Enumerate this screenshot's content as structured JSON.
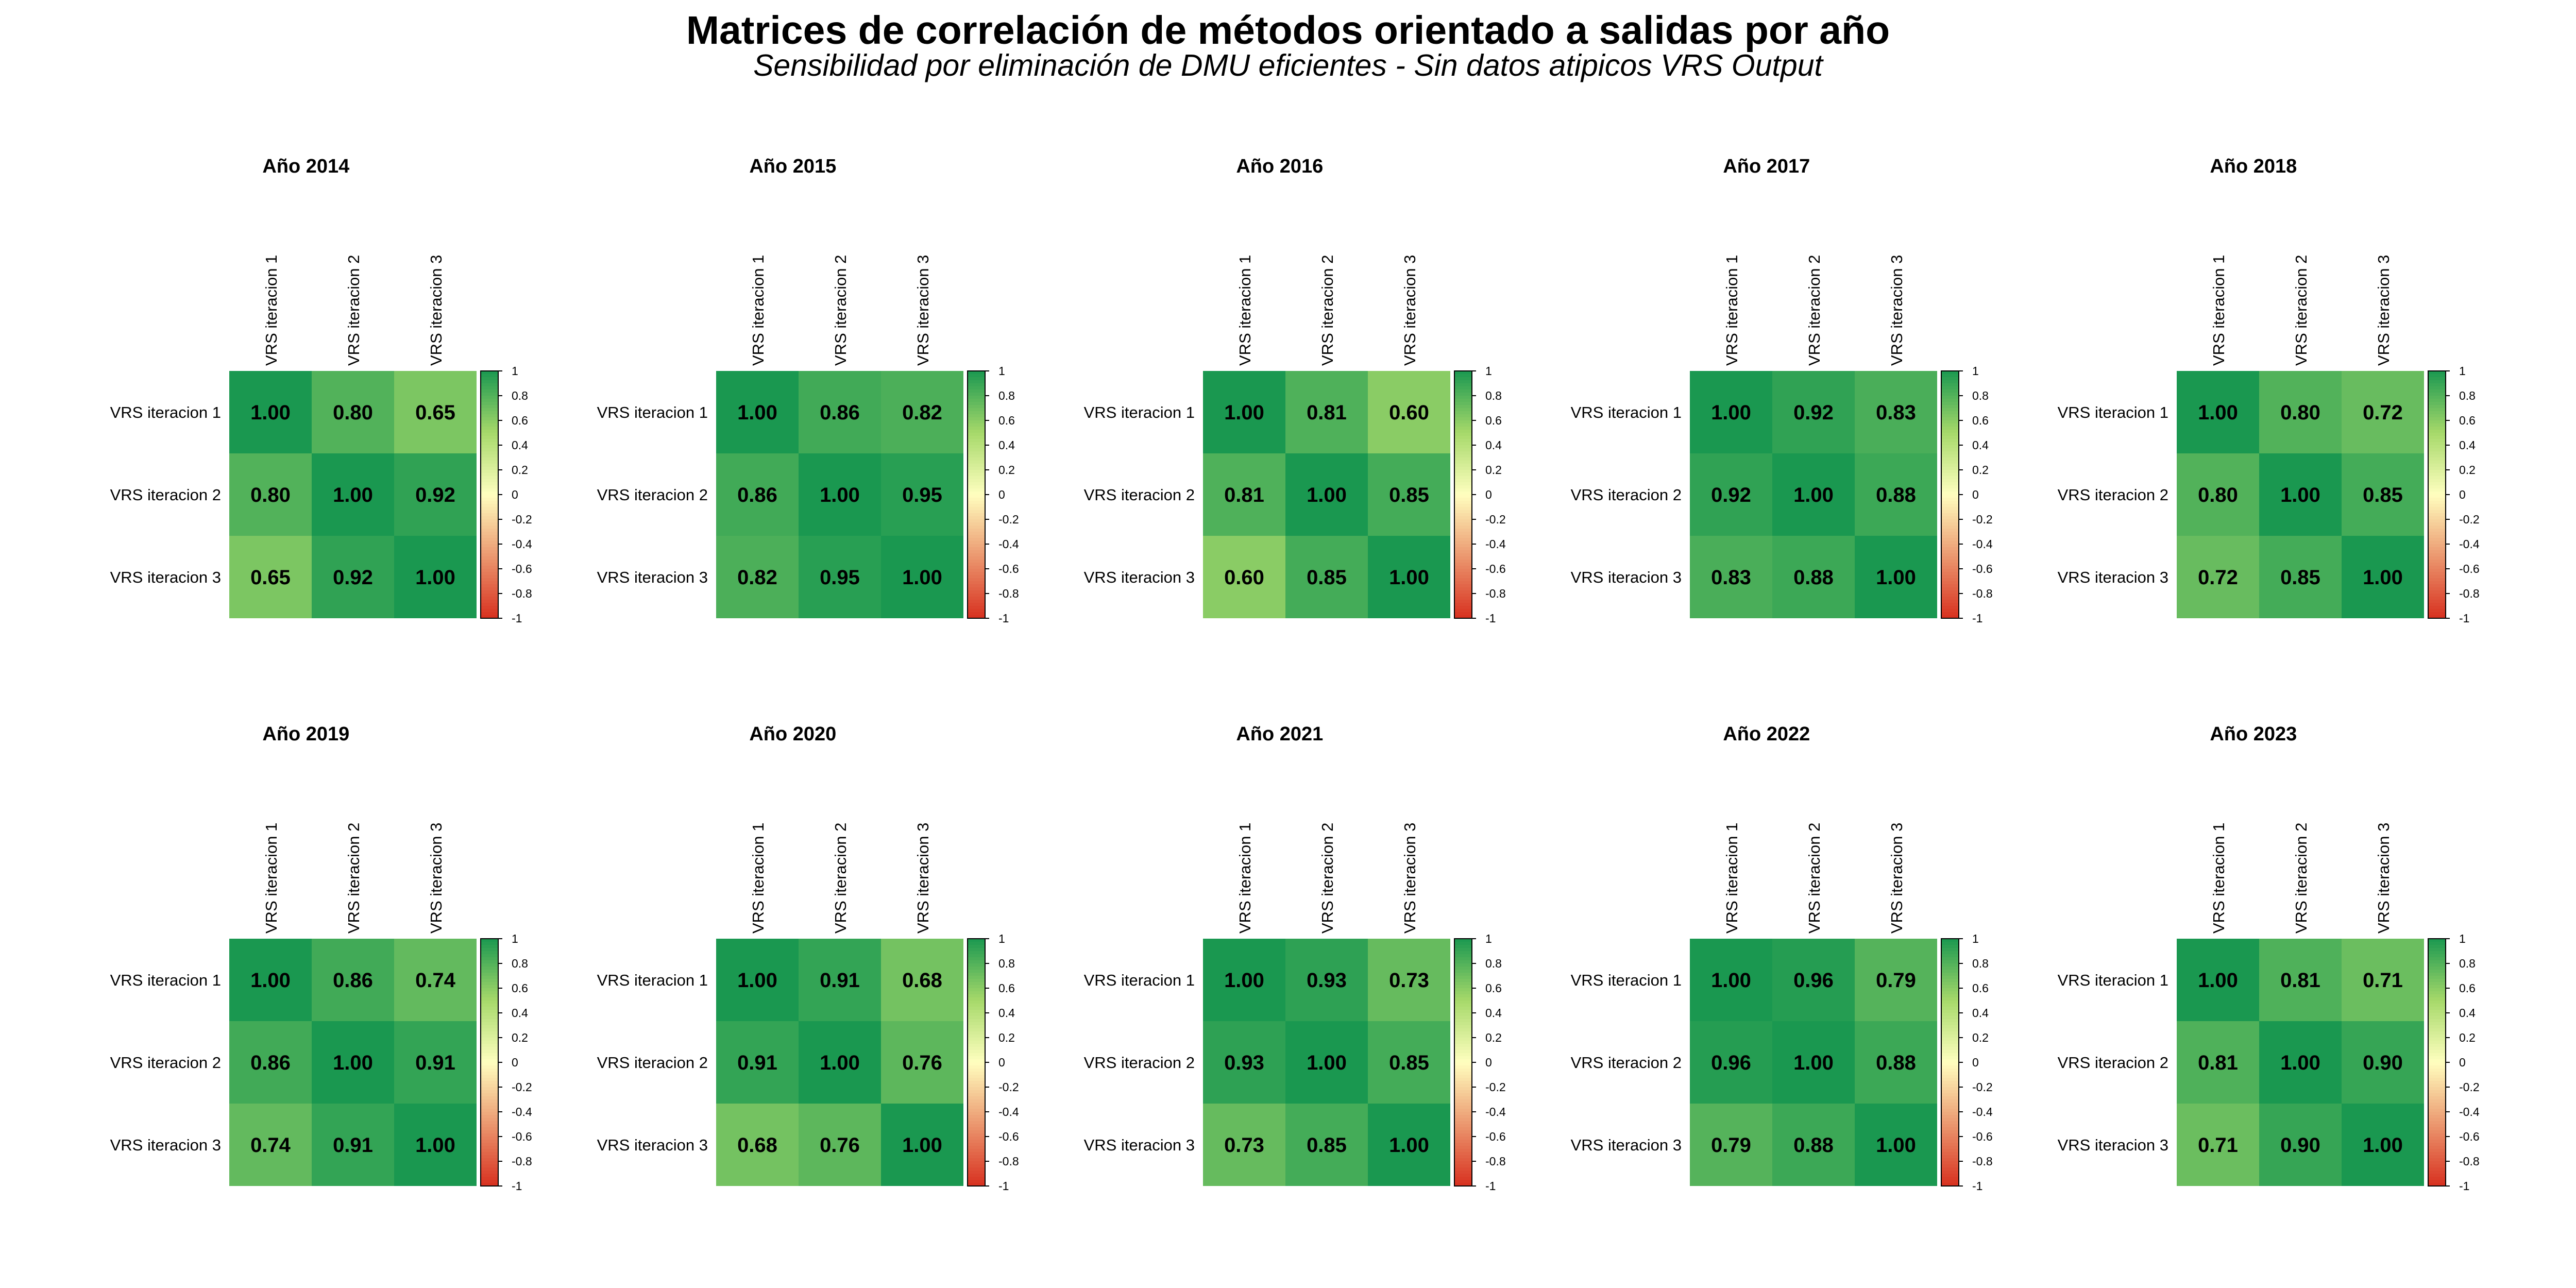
{
  "title": "Matrices de correlación de métodos orientado a salidas por año",
  "subtitle": "Sensibilidad por eliminación de DMU eficientes - Sin datos atipicos VRS Output",
  "colors": {
    "negative": "#d7301f",
    "zero": "#ffffbf",
    "mid_positive": "#a6d96a",
    "positive": "#1a9850",
    "text": "#000000"
  },
  "chart_data": [
    {
      "type": "heatmap",
      "title": "Año 2014",
      "labels": [
        "VRS iteracion 1",
        "VRS iteracion 2",
        "VRS iteracion 3"
      ],
      "values": [
        [
          1.0,
          0.8,
          0.65
        ],
        [
          0.8,
          1.0,
          0.92
        ],
        [
          0.65,
          0.92,
          1.0
        ]
      ],
      "colorbar_range": [
        -1,
        1
      ],
      "colorbar_ticks": [
        "1",
        "0.8",
        "0.6",
        "0.4",
        "0.2",
        "0",
        "-0.2",
        "-0.4",
        "-0.6",
        "-0.8",
        "-1"
      ]
    },
    {
      "type": "heatmap",
      "title": "Año 2015",
      "labels": [
        "VRS iteracion 1",
        "VRS iteracion 2",
        "VRS iteracion 3"
      ],
      "values": [
        [
          1.0,
          0.86,
          0.82
        ],
        [
          0.86,
          1.0,
          0.95
        ],
        [
          0.82,
          0.95,
          1.0
        ]
      ],
      "colorbar_range": [
        -1,
        1
      ],
      "colorbar_ticks": [
        "1",
        "0.8",
        "0.6",
        "0.4",
        "0.2",
        "0",
        "-0.2",
        "-0.4",
        "-0.6",
        "-0.8",
        "-1"
      ]
    },
    {
      "type": "heatmap",
      "title": "Año 2016",
      "labels": [
        "VRS iteracion 1",
        "VRS iteracion 2",
        "VRS iteracion 3"
      ],
      "values": [
        [
          1.0,
          0.81,
          0.6
        ],
        [
          0.81,
          1.0,
          0.85
        ],
        [
          0.6,
          0.85,
          1.0
        ]
      ],
      "colorbar_range": [
        -1,
        1
      ],
      "colorbar_ticks": [
        "1",
        "0.8",
        "0.6",
        "0.4",
        "0.2",
        "0",
        "-0.2",
        "-0.4",
        "-0.6",
        "-0.8",
        "-1"
      ]
    },
    {
      "type": "heatmap",
      "title": "Año 2017",
      "labels": [
        "VRS iteracion 1",
        "VRS iteracion 2",
        "VRS iteracion 3"
      ],
      "values": [
        [
          1.0,
          0.92,
          0.83
        ],
        [
          0.92,
          1.0,
          0.88
        ],
        [
          0.83,
          0.88,
          1.0
        ]
      ],
      "colorbar_range": [
        -1,
        1
      ],
      "colorbar_ticks": [
        "1",
        "0.8",
        "0.6",
        "0.4",
        "0.2",
        "0",
        "-0.2",
        "-0.4",
        "-0.6",
        "-0.8",
        "-1"
      ]
    },
    {
      "type": "heatmap",
      "title": "Año 2018",
      "labels": [
        "VRS iteracion 1",
        "VRS iteracion 2",
        "VRS iteracion 3"
      ],
      "values": [
        [
          1.0,
          0.8,
          0.72
        ],
        [
          0.8,
          1.0,
          0.85
        ],
        [
          0.72,
          0.85,
          1.0
        ]
      ],
      "colorbar_range": [
        -1,
        1
      ],
      "colorbar_ticks": [
        "1",
        "0.8",
        "0.6",
        "0.4",
        "0.2",
        "0",
        "-0.2",
        "-0.4",
        "-0.6",
        "-0.8",
        "-1"
      ]
    },
    {
      "type": "heatmap",
      "title": "Año 2019",
      "labels": [
        "VRS iteracion 1",
        "VRS iteracion 2",
        "VRS iteracion 3"
      ],
      "values": [
        [
          1.0,
          0.86,
          0.74
        ],
        [
          0.86,
          1.0,
          0.91
        ],
        [
          0.74,
          0.91,
          1.0
        ]
      ],
      "colorbar_range": [
        -1,
        1
      ],
      "colorbar_ticks": [
        "1",
        "0.8",
        "0.6",
        "0.4",
        "0.2",
        "0",
        "-0.2",
        "-0.4",
        "-0.6",
        "-0.8",
        "-1"
      ]
    },
    {
      "type": "heatmap",
      "title": "Año 2020",
      "labels": [
        "VRS iteracion 1",
        "VRS iteracion 2",
        "VRS iteracion 3"
      ],
      "values": [
        [
          1.0,
          0.91,
          0.68
        ],
        [
          0.91,
          1.0,
          0.76
        ],
        [
          0.68,
          0.76,
          1.0
        ]
      ],
      "colorbar_range": [
        -1,
        1
      ],
      "colorbar_ticks": [
        "1",
        "0.8",
        "0.6",
        "0.4",
        "0.2",
        "0",
        "-0.2",
        "-0.4",
        "-0.6",
        "-0.8",
        "-1"
      ]
    },
    {
      "type": "heatmap",
      "title": "Año 2021",
      "labels": [
        "VRS iteracion 1",
        "VRS iteracion 2",
        "VRS iteracion 3"
      ],
      "values": [
        [
          1.0,
          0.93,
          0.73
        ],
        [
          0.93,
          1.0,
          0.85
        ],
        [
          0.73,
          0.85,
          1.0
        ]
      ],
      "colorbar_range": [
        -1,
        1
      ],
      "colorbar_ticks": [
        "1",
        "0.8",
        "0.6",
        "0.4",
        "0.2",
        "0",
        "-0.2",
        "-0.4",
        "-0.6",
        "-0.8",
        "-1"
      ]
    },
    {
      "type": "heatmap",
      "title": "Año 2022",
      "labels": [
        "VRS iteracion 1",
        "VRS iteracion 2",
        "VRS iteracion 3"
      ],
      "values": [
        [
          1.0,
          0.96,
          0.79
        ],
        [
          0.96,
          1.0,
          0.88
        ],
        [
          0.79,
          0.88,
          1.0
        ]
      ],
      "colorbar_range": [
        -1,
        1
      ],
      "colorbar_ticks": [
        "1",
        "0.8",
        "0.6",
        "0.4",
        "0.2",
        "0",
        "-0.2",
        "-0.4",
        "-0.6",
        "-0.8",
        "-1"
      ]
    },
    {
      "type": "heatmap",
      "title": "Año 2023",
      "labels": [
        "VRS iteracion 1",
        "VRS iteracion 2",
        "VRS iteracion 3"
      ],
      "values": [
        [
          1.0,
          0.81,
          0.71
        ],
        [
          0.81,
          1.0,
          0.9
        ],
        [
          0.71,
          0.9,
          1.0
        ]
      ],
      "colorbar_range": [
        -1,
        1
      ],
      "colorbar_ticks": [
        "1",
        "0.8",
        "0.6",
        "0.4",
        "0.2",
        "0",
        "-0.2",
        "-0.4",
        "-0.6",
        "-0.8",
        "-1"
      ]
    }
  ]
}
